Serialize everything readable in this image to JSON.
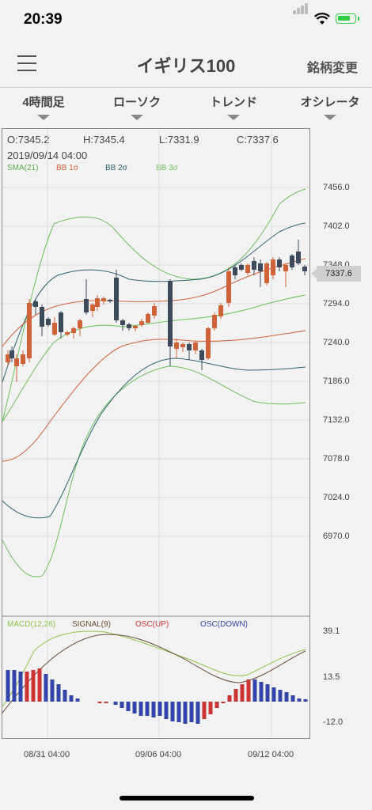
{
  "status": {
    "time": "20:39"
  },
  "header": {
    "title": "イギリス100",
    "change_button": "銘柄変更"
  },
  "tabs": [
    {
      "label": "4時間足"
    },
    {
      "label": "ローソク"
    },
    {
      "label": "トレンド"
    },
    {
      "label": "オシレータ"
    }
  ],
  "ohlc": {
    "open": "O:7345.2",
    "high": "H:7345.4",
    "low": "L:7331.9",
    "close": "C:7337.6",
    "date": "2019/09/14 04:00"
  },
  "legend": [
    {
      "label": "SMA(21)",
      "color": "#5aab4a"
    },
    {
      "label": "BB 1σ",
      "color": "#d0623a"
    },
    {
      "label": "BB 2σ",
      "color": "#2e6272"
    },
    {
      "label": "BB 3σ",
      "color": "#6cc05a"
    }
  ],
  "price_axis": [
    "7456.0",
    "7402.0",
    "7348.0",
    "7294.0",
    "7240.0",
    "7186.0",
    "7132.0",
    "7078.0",
    "7024.0",
    "6970.0"
  ],
  "current_price": "7337.6",
  "macd_legend": [
    {
      "label": "MACD(12,26)",
      "color": "#8fc44a"
    },
    {
      "label": "SIGNAL(9)",
      "color": "#6a4a3a"
    },
    {
      "label": "OSC(UP)",
      "color": "#cc3333"
    },
    {
      "label": "OSC(DOWN)",
      "color": "#3344aa"
    }
  ],
  "macd_axis": [
    "39.1",
    "13.5",
    "-12.0"
  ],
  "time_axis": [
    "08/31 04:00",
    "09/06 04:00",
    "09/12 04:00"
  ],
  "colors": {
    "up": "#d0623a",
    "down": "#3d4a5c"
  }
}
